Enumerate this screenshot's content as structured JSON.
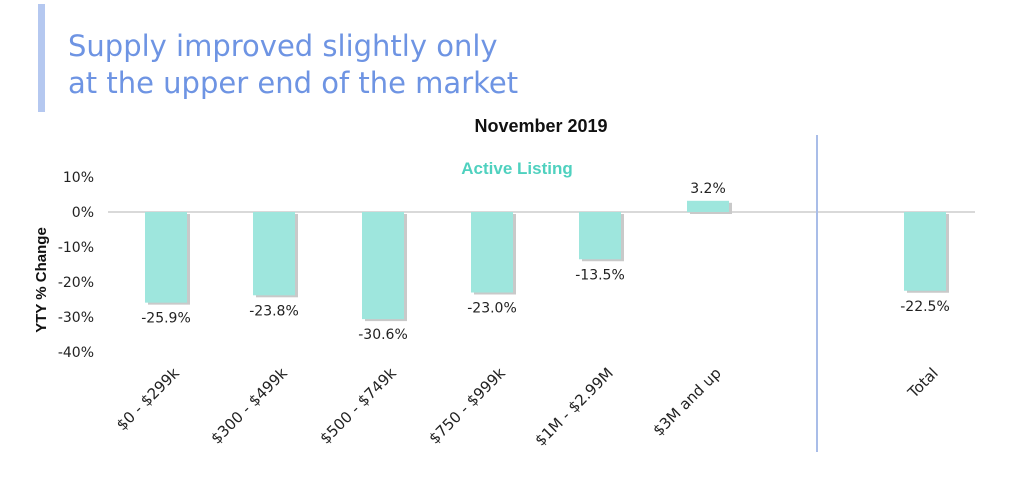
{
  "headline": {
    "line1": "Supply improved slightly only",
    "line2": "at the upper end of the market"
  },
  "colors": {
    "accent": "#b5c8f0",
    "headline": "#6e94e3",
    "bar": "#9ee6dd",
    "bar_shadow": "#c9c9c9",
    "series_label": "#4fd1bf",
    "divider": "#a9bde8"
  },
  "chart_data": {
    "type": "bar",
    "title": "November 2019",
    "series_label": "Active Listing",
    "ylabel": "YTY % Change",
    "xlabel": "",
    "ylim": [
      -40,
      10
    ],
    "yticks": [
      "10%",
      "0%",
      "-10%",
      "-20%",
      "-30%",
      "-40%"
    ],
    "ytick_values": [
      10,
      0,
      -10,
      -20,
      -30,
      -40
    ],
    "categories": [
      "$0 - $299k",
      "$300 - $499k",
      "$500 - $749k",
      "$750 - $999k",
      "$1M - $2.99M",
      "$3M and up",
      "Total"
    ],
    "values": [
      -25.9,
      -23.8,
      -30.6,
      -23.0,
      -13.5,
      3.2,
      -22.5
    ],
    "data_labels": [
      "-25.9%",
      "-23.8%",
      "-30.6%",
      "-23.0%",
      "-13.5%",
      "3.2%",
      "-22.5%"
    ],
    "grid": false,
    "separator_before_category": "Total"
  }
}
